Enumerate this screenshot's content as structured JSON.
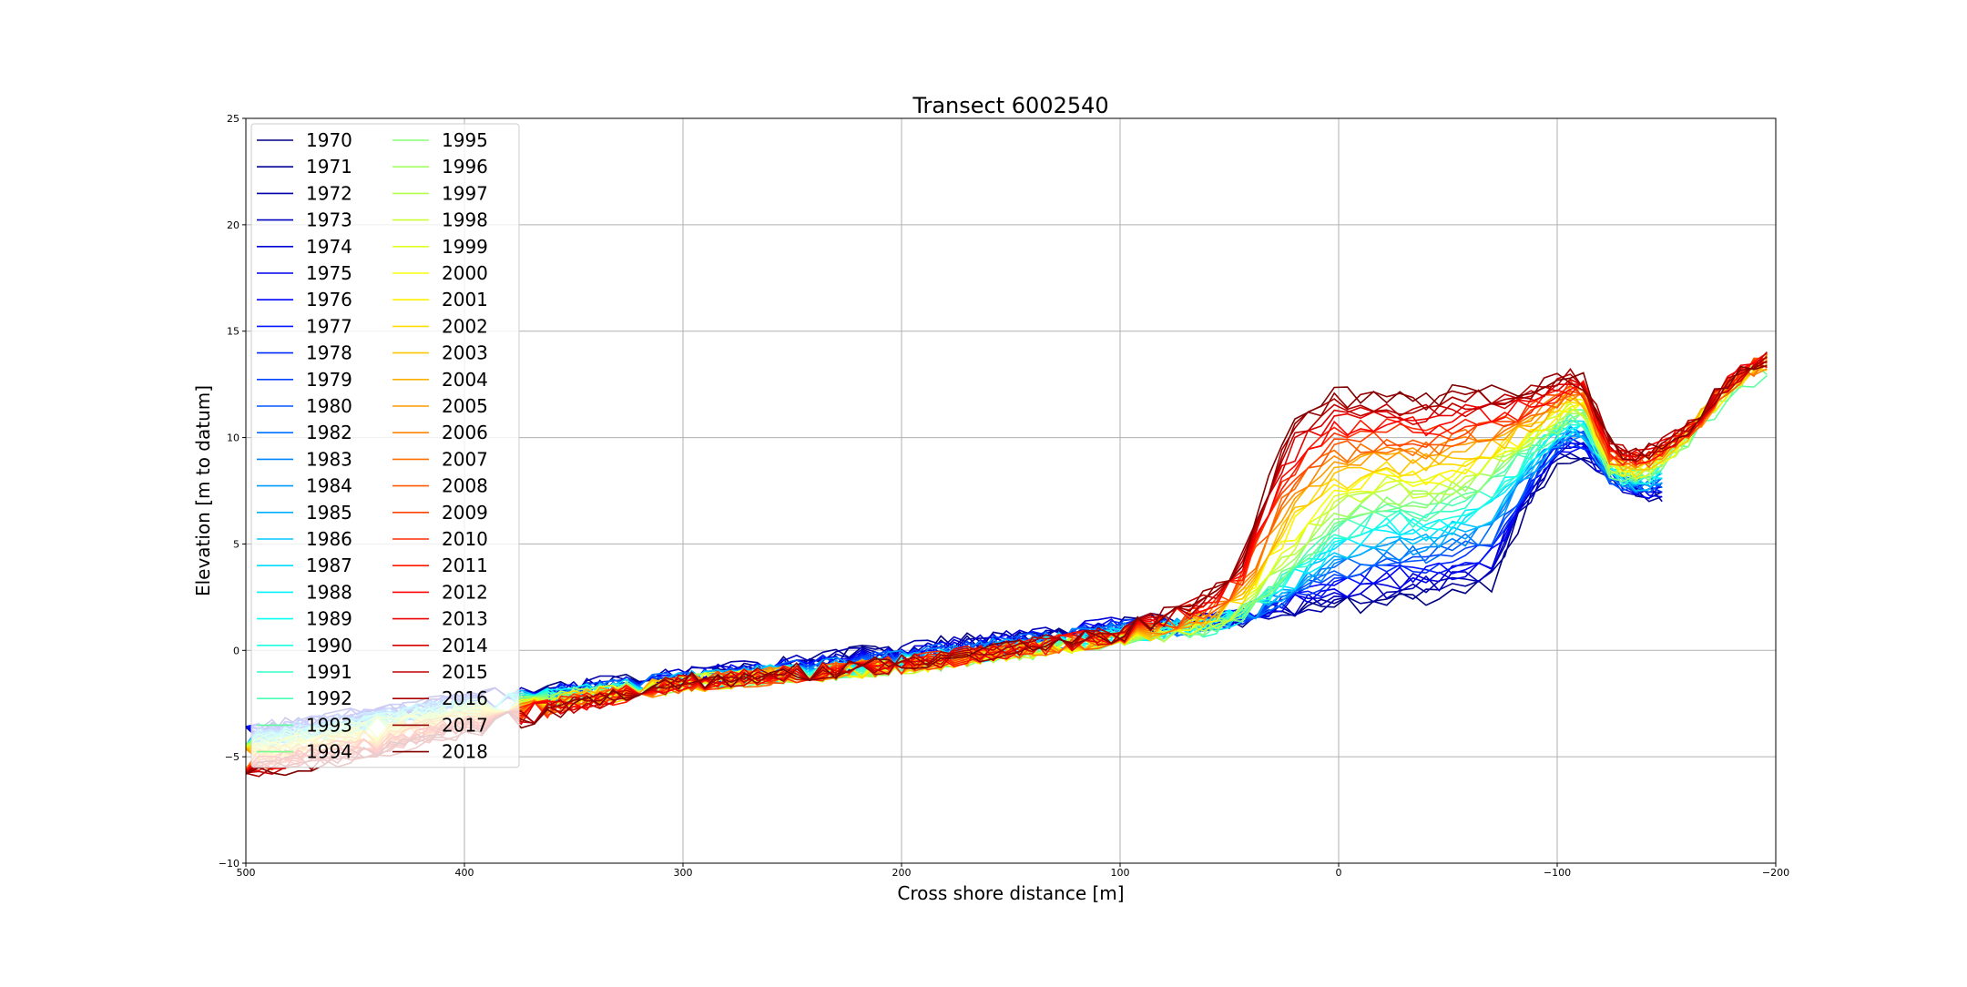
{
  "chart_data": {
    "type": "line",
    "title": "Transect 6002540",
    "xlabel": "Cross shore distance [m]",
    "ylabel": "Elevation [m to datum]",
    "xlim": [
      500,
      -200
    ],
    "ylim": [
      -10,
      25
    ],
    "x_ticks": [
      500,
      400,
      300,
      200,
      100,
      0,
      -100,
      -200
    ],
    "x_tick_labels": [
      "500",
      "400",
      "300",
      "200",
      "100",
      "0",
      "−100",
      "−200"
    ],
    "y_ticks": [
      -10,
      -5,
      0,
      5,
      10,
      15,
      20,
      25
    ],
    "y_tick_labels": [
      "−10",
      "−5",
      "0",
      "5",
      "10",
      "15",
      "20",
      "25"
    ],
    "grid": true,
    "legend_placement": "upper-left",
    "legend_columns": 2,
    "colormap": "jet",
    "series": [
      {
        "name": "1970"
      },
      {
        "name": "1971"
      },
      {
        "name": "1972"
      },
      {
        "name": "1973"
      },
      {
        "name": "1974"
      },
      {
        "name": "1975"
      },
      {
        "name": "1976"
      },
      {
        "name": "1977"
      },
      {
        "name": "1978"
      },
      {
        "name": "1979"
      },
      {
        "name": "1980"
      },
      {
        "name": "1982"
      },
      {
        "name": "1983"
      },
      {
        "name": "1984"
      },
      {
        "name": "1985"
      },
      {
        "name": "1986"
      },
      {
        "name": "1987"
      },
      {
        "name": "1988"
      },
      {
        "name": "1989"
      },
      {
        "name": "1990"
      },
      {
        "name": "1991"
      },
      {
        "name": "1992"
      },
      {
        "name": "1993"
      },
      {
        "name": "1994"
      },
      {
        "name": "1995"
      },
      {
        "name": "1996"
      },
      {
        "name": "1997"
      },
      {
        "name": "1998"
      },
      {
        "name": "1999"
      },
      {
        "name": "2000"
      },
      {
        "name": "2001"
      },
      {
        "name": "2002"
      },
      {
        "name": "2003"
      },
      {
        "name": "2004"
      },
      {
        "name": "2005"
      },
      {
        "name": "2006"
      },
      {
        "name": "2007"
      },
      {
        "name": "2008"
      },
      {
        "name": "2009"
      },
      {
        "name": "2010"
      },
      {
        "name": "2011"
      },
      {
        "name": "2012"
      },
      {
        "name": "2013"
      },
      {
        "name": "2014"
      },
      {
        "name": "2015"
      },
      {
        "name": "2016"
      },
      {
        "name": "2017"
      },
      {
        "name": "2018"
      }
    ]
  }
}
